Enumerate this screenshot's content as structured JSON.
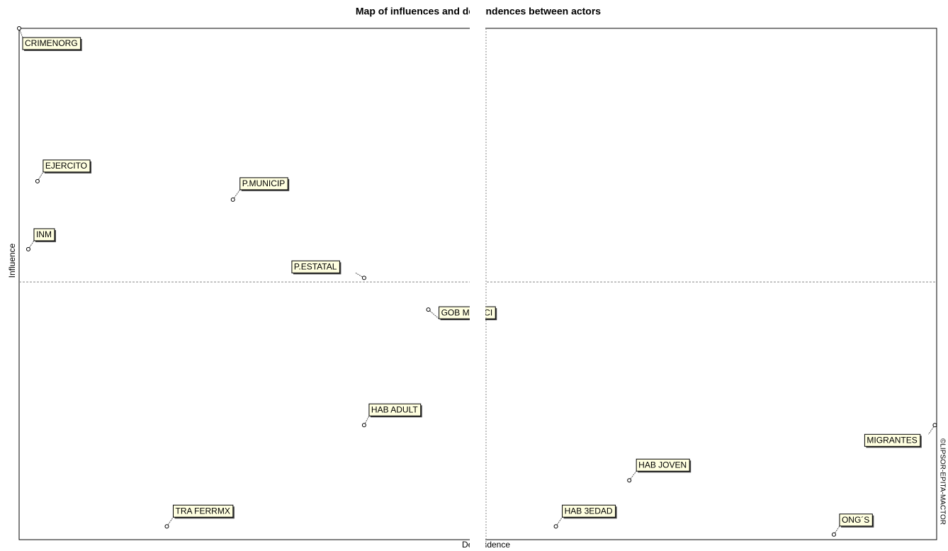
{
  "chart_data": {
    "type": "scatter",
    "title": "Map of influences and dependences between actors",
    "x_label": "Dependence",
    "y_label": "Influence",
    "watermark": "©LIPSOR-EPITA-MACTOR",
    "xlim": [
      0,
      100
    ],
    "ylim": [
      0,
      100
    ],
    "midlines": {
      "x": 50.9,
      "y": 50.4
    },
    "labels": [
      "CRIMENORG",
      "EJERCITO",
      "P.MUNICIP",
      "INM",
      "P.ESTATAL",
      "GOB MUNICI",
      "HAB ADULT",
      "TRA FERRMX",
      "MIGRANTES",
      "HAB JOVEN",
      "HAB 3EDAD",
      "ONG´S"
    ],
    "x": [
      0,
      2.0,
      23.3,
      1.0,
      37.6,
      44.6,
      37.6,
      16.1,
      99.8,
      66.5,
      58.5,
      88.8
    ],
    "y": [
      100,
      70.1,
      66.5,
      56.8,
      51.2,
      45.0,
      22.4,
      2.6,
      22.4,
      11.6,
      2.6,
      1.0
    ],
    "color": "#000000",
    "label_background": "#ffffe0"
  }
}
